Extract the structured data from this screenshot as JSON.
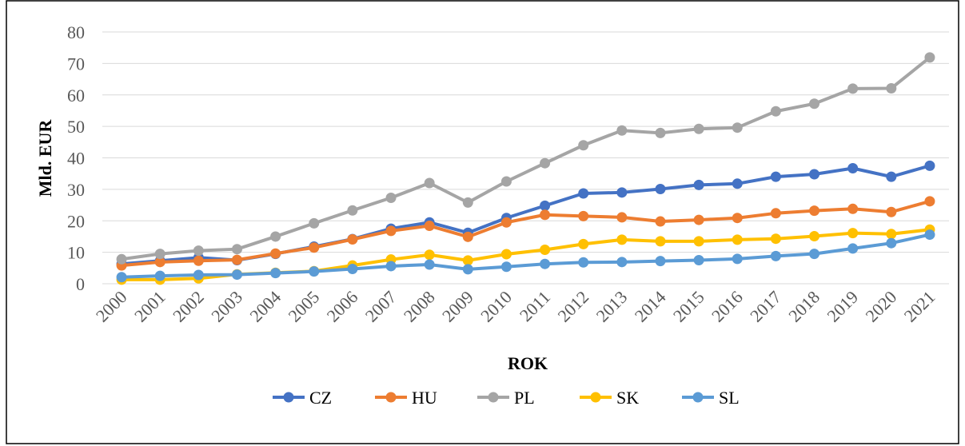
{
  "chart_data": {
    "type": "line",
    "x_label": "ROK",
    "y_label": "Mld. EUR",
    "categories": [
      "2000",
      "2001",
      "2002",
      "2003",
      "2004",
      "2005",
      "2006",
      "2007",
      "2008",
      "2009",
      "2010",
      "2011",
      "2012",
      "2013",
      "2014",
      "2015",
      "2016",
      "2017",
      "2018",
      "2019",
      "2020",
      "2021"
    ],
    "series": [
      {
        "name": "CZ",
        "color": "#4472c4",
        "values": [
          6.3,
          7.3,
          8.3,
          7.5,
          9.5,
          11.8,
          14.2,
          17.5,
          19.5,
          16.2,
          20.9,
          24.8,
          28.7,
          29,
          30.1,
          31.4,
          31.8,
          34,
          34.8,
          36.7,
          34,
          37.5
        ]
      },
      {
        "name": "HU",
        "color": "#ed7d31",
        "values": [
          5.8,
          6.9,
          7.3,
          7.6,
          9.6,
          11.5,
          14.1,
          16.8,
          18.4,
          14.9,
          19.5,
          21.9,
          21.5,
          21.1,
          19.8,
          20.3,
          20.9,
          22.4,
          23.2,
          23.8,
          22.8,
          26.2
        ]
      },
      {
        "name": "PL",
        "color": "#a5a5a5",
        "values": [
          7.8,
          9.5,
          10.5,
          11,
          15,
          19.2,
          23.3,
          27.3,
          32,
          25.8,
          32.5,
          38.3,
          44,
          48.7,
          47.9,
          49.2,
          49.6,
          54.8,
          57.2,
          62,
          62.1,
          71.9
        ]
      },
      {
        "name": "SK",
        "color": "#ffc000",
        "values": [
          1.3,
          1.3,
          1.7,
          3,
          3.5,
          4,
          5.8,
          7.7,
          9.2,
          7.4,
          9.4,
          10.8,
          12.6,
          14,
          13.5,
          13.5,
          14,
          14.3,
          15.1,
          16.1,
          15.8,
          17.2
        ]
      },
      {
        "name": "SL",
        "color": "#5b9bd5",
        "values": [
          2.1,
          2.5,
          2.8,
          2.9,
          3.4,
          3.9,
          4.7,
          5.6,
          6.1,
          4.6,
          5.4,
          6.3,
          6.8,
          6.9,
          7.2,
          7.5,
          7.9,
          8.8,
          9.5,
          11.2,
          12.9,
          15.6
        ]
      }
    ],
    "ylim": [
      0,
      80
    ],
    "yticks": [
      0,
      10,
      20,
      30,
      40,
      50,
      60,
      70,
      80
    ],
    "grid": true,
    "legend": "bottom"
  }
}
